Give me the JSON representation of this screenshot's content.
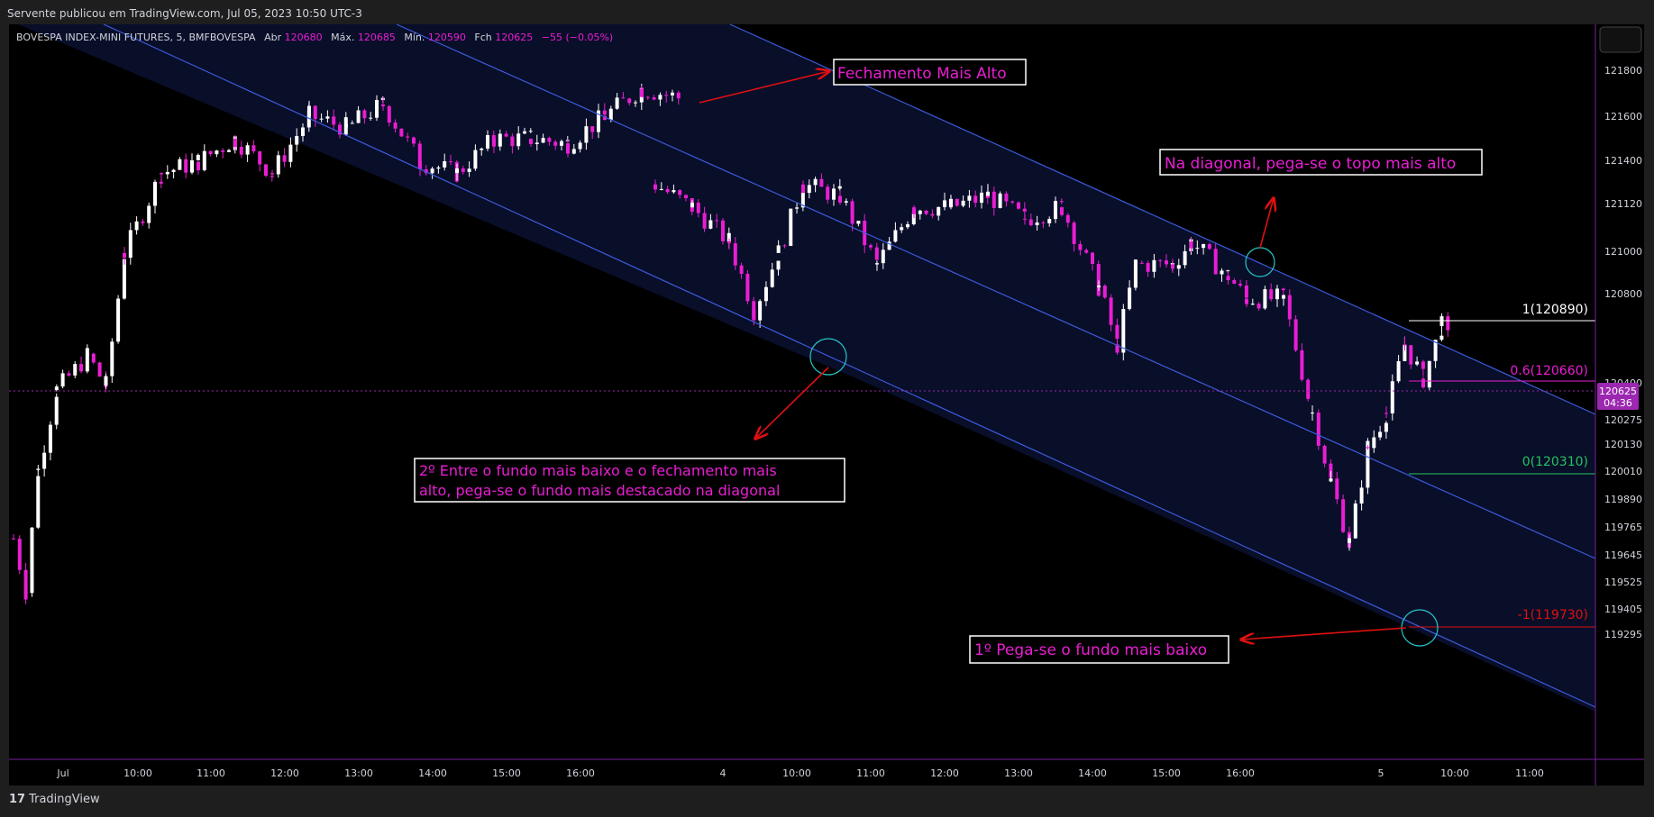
{
  "header": {
    "published_text": "Servente publicou em TradingView.com, Jul 05, 2023 10:50 UTC-3"
  },
  "footer": {
    "brand": "TradingView",
    "logo_mark": "17"
  },
  "symbol_info": {
    "name": "BOVESPA INDEX-MINI FUTURES, 5, BMFBOVESPA",
    "open_label": "Abr",
    "open_value": "120680",
    "high_label": "Máx.",
    "high_value": "120685",
    "low_label": "Mín.",
    "low_value": "120590",
    "close_label": "Fch",
    "close_value": "120625",
    "change": "−55 (−0.05%)"
  },
  "colors": {
    "up": "#ffffff",
    "down": "#e91ed3",
    "channel": "#3b5bdb",
    "annotation_text": "#e91ed3",
    "arrow": "#e01010",
    "circle": "#26c6c6",
    "fib_1": "#ffffff",
    "fib_06": "#e91ed3",
    "fib_0": "#22c55e",
    "fib_m1": "#e01010",
    "price_badge": "#9c27b0"
  },
  "price_axis": {
    "ticks": [
      "121800",
      "121600",
      "121400",
      "121120",
      "121000",
      "120800",
      "120400",
      "120275",
      "120130",
      "120010",
      "119890",
      "119765",
      "119645",
      "119525",
      "119405",
      "119295"
    ],
    "current_price": "120625",
    "countdown": "04:36"
  },
  "time_axis": {
    "labels": [
      "Jul",
      "10:00",
      "11:00",
      "12:00",
      "13:00",
      "14:00",
      "15:00",
      "16:00",
      "4",
      "10:00",
      "11:00",
      "12:00",
      "13:00",
      "14:00",
      "15:00",
      "16:00",
      "5",
      "10:00",
      "11:00"
    ]
  },
  "fib_levels": [
    {
      "label": "1(120890)",
      "price": 120890,
      "color": "#ffffff"
    },
    {
      "label": "0.6(120660)",
      "price": 120660,
      "color": "#e91ed3"
    },
    {
      "label": "0(120310)",
      "price": 120310,
      "color": "#22c55e"
    },
    {
      "label": "-1(119730)",
      "price": 119730,
      "color": "#e01010"
    }
  ],
  "annotations": {
    "highest_close": "Fechamento Mais Alto",
    "diagonal_top": "Na diagonal, pega-se o topo mais alto",
    "second_step_line1": "2º Entre o fundo mais baixo e o fechamento mais",
    "second_step_line2": "alto, pega-se o fundo mais destacado na diagonal",
    "first_step": "1º Pega-se o fundo mais baixo"
  },
  "chart_data": {
    "type": "candlestick",
    "title": "BOVESPA INDEX-MINI FUTURES, 5, BMFBOVESPA",
    "interval": "5",
    "ylim": [
      119200,
      122050
    ],
    "sessions": [
      {
        "date": "Jul 3",
        "start": "09:00",
        "end": "18:00"
      },
      {
        "date": "Jul 4",
        "start": "09:00",
        "end": "18:00"
      },
      {
        "date": "Jul 5",
        "start": "09:00",
        "end": "10:50"
      }
    ],
    "close_path": [
      {
        "t": "Jul 3 09:00",
        "close": 119750
      },
      {
        "t": "Jul 3 09:10",
        "close": 119520
      },
      {
        "t": "Jul 3 09:20",
        "close": 120050
      },
      {
        "t": "Jul 3 09:35",
        "close": 120400
      },
      {
        "t": "Jul 3 10:00",
        "close": 120550
      },
      {
        "t": "Jul 3 10:15",
        "close": 120420
      },
      {
        "t": "Jul 3 10:30",
        "close": 121000
      },
      {
        "t": "Jul 3 11:00",
        "close": 121350
      },
      {
        "t": "Jul 3 11:30",
        "close": 121400
      },
      {
        "t": "Jul 3 12:00",
        "close": 121500
      },
      {
        "t": "Jul 3 12:30",
        "close": 121350
      },
      {
        "t": "Jul 3 13:00",
        "close": 121600
      },
      {
        "t": "Jul 3 13:30",
        "close": 121550
      },
      {
        "t": "Jul 3 14:00",
        "close": 121650
      },
      {
        "t": "Jul 3 14:30",
        "close": 121400
      },
      {
        "t": "Jul 3 15:00",
        "close": 121350
      },
      {
        "t": "Jul 3 15:30",
        "close": 121500
      },
      {
        "t": "Jul 3 16:00",
        "close": 121500
      },
      {
        "t": "Jul 3 16:30",
        "close": 121480
      },
      {
        "t": "Jul 3 17:00",
        "close": 121600
      },
      {
        "t": "Jul 3 17:30",
        "close": 121720
      },
      {
        "t": "Jul 3 18:00",
        "close": 121680
      },
      {
        "t": "Jul 4 09:00",
        "close": 121300
      },
      {
        "t": "Jul 4 09:30",
        "close": 121200
      },
      {
        "t": "Jul 4 10:00",
        "close": 121050
      },
      {
        "t": "Jul 4 10:20",
        "close": 120750
      },
      {
        "t": "Jul 4 10:40",
        "close": 121000
      },
      {
        "t": "Jul 4 11:00",
        "close": 121300
      },
      {
        "t": "Jul 4 11:30",
        "close": 121250
      },
      {
        "t": "Jul 4 12:00",
        "close": 120950
      },
      {
        "t": "Jul 4 12:30",
        "close": 121200
      },
      {
        "t": "Jul 4 13:00",
        "close": 121200
      },
      {
        "t": "Jul 4 13:30",
        "close": 121250
      },
      {
        "t": "Jul 4 14:00",
        "close": 121150
      },
      {
        "t": "Jul 4 14:30",
        "close": 121200
      },
      {
        "t": "Jul 4 15:00",
        "close": 120850
      },
      {
        "t": "Jul 4 15:15",
        "close": 120600
      },
      {
        "t": "Jul 4 15:30",
        "close": 120950
      },
      {
        "t": "Jul 4 16:00",
        "close": 120950
      },
      {
        "t": "Jul 4 16:15",
        "close": 121050
      },
      {
        "t": "Jul 4 16:45",
        "close": 120900
      },
      {
        "t": "Jul 4 17:00",
        "close": 120800
      },
      {
        "t": "Jul 4 17:30",
        "close": 120800
      },
      {
        "t": "Jul 5 09:00",
        "close": 120300
      },
      {
        "t": "Jul 5 09:15",
        "close": 120000
      },
      {
        "t": "Jul 5 09:30",
        "close": 119730
      },
      {
        "t": "Jul 5 09:45",
        "close": 120150
      },
      {
        "t": "Jul 5 10:00",
        "close": 120300
      },
      {
        "t": "Jul 5 10:15",
        "close": 120600
      },
      {
        "t": "Jul 5 10:30",
        "close": 120450
      },
      {
        "t": "Jul 5 10:45",
        "close": 120680
      },
      {
        "t": "Jul 5 10:50",
        "close": 120625
      }
    ],
    "last_bar": {
      "open": 120680,
      "high": 120685,
      "low": 120590,
      "close": 120625,
      "change": -55,
      "change_pct": -0.05
    }
  }
}
